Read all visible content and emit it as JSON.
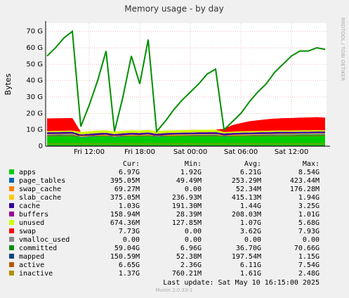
{
  "chart_data": {
    "type": "area",
    "title": "Memory usage - by day",
    "y_label": "Bytes",
    "side_note": "RRDTOOL / TOBI OETIKER",
    "categories": [
      null,
      null,
      null,
      null,
      null,
      "Fri 12:00",
      null,
      null,
      null,
      null,
      null,
      "Fri 18:00",
      null,
      null,
      null,
      null,
      null,
      "Sat 00:00",
      null,
      null,
      null,
      null,
      null,
      "Sat 06:00",
      null,
      null,
      null,
      null,
      null,
      "Sat 12:00",
      null,
      null,
      null,
      null
    ],
    "ylim": [
      0,
      75
    ],
    "yticks": [
      0,
      {
        "value": 10,
        "label": "10 G"
      },
      {
        "value": 20,
        "label": "20 G"
      },
      {
        "value": 30,
        "label": "30 G"
      },
      {
        "value": 40,
        "label": "40 G"
      },
      {
        "value": 50,
        "label": "50 G"
      },
      {
        "value": 60,
        "label": "60 G"
      },
      {
        "value": 70,
        "label": "70 G"
      }
    ],
    "grid": true,
    "stats_columns": [
      "Cur:",
      "Min:",
      "Avg:",
      "Max:"
    ],
    "series": [
      {
        "name": "apps",
        "color": "#00cc00",
        "kind": "area",
        "stats": [
          "6.97G",
          "1.92G",
          "6.21G",
          "8.54G"
        ],
        "values": [
          6.5,
          6.6,
          6.7,
          6.8,
          5.2,
          5.6,
          6,
          6.2,
          5.4,
          5.9,
          6.2,
          6,
          6.4,
          5.6,
          6,
          6.2,
          6.3,
          6.4,
          6.5,
          6.5,
          6.6,
          5.8,
          6.1,
          6.3,
          6.4,
          6.5,
          6.6,
          6.7,
          6.8,
          6.8,
          6.9,
          6.9,
          7,
          6.97
        ]
      },
      {
        "name": "page_tables",
        "color": "#0066b3",
        "kind": "area",
        "stats": [
          "395.05M",
          "49.49M",
          "253.29M",
          "423.44M"
        ],
        "values": [
          0.4,
          0.4,
          0.4,
          0.4,
          0.4,
          0.4,
          0.4,
          0.4,
          0.4,
          0.4,
          0.4,
          0.4,
          0.4,
          0.4,
          0.4,
          0.4,
          0.4,
          0.4,
          0.4,
          0.4,
          0.4,
          0.4,
          0.4,
          0.4,
          0.4,
          0.4,
          0.4,
          0.4,
          0.4,
          0.4,
          0.4,
          0.4,
          0.4,
          0.395
        ]
      },
      {
        "name": "swap_cache",
        "color": "#ff8000",
        "kind": "area",
        "stats": [
          "69.27M",
          "0.00",
          "52.34M",
          "176.28M"
        ],
        "values": [
          0.07,
          0.07,
          0.07,
          0.07,
          0.07,
          0.07,
          0.07,
          0.07,
          0.07,
          0.07,
          0.07,
          0.07,
          0.07,
          0.07,
          0.07,
          0.07,
          0.07,
          0.07,
          0.07,
          0.07,
          0.07,
          0.07,
          0.07,
          0.07,
          0.07,
          0.07,
          0.07,
          0.07,
          0.07,
          0.07,
          0.07,
          0.07,
          0.07,
          0.069
        ]
      },
      {
        "name": "slab_cache",
        "color": "#ffcc00",
        "kind": "area",
        "stats": [
          "375.05M",
          "236.93M",
          "415.13M",
          "1.94G"
        ],
        "values": [
          0.38,
          0.38,
          0.38,
          0.38,
          0.38,
          0.38,
          0.38,
          0.38,
          0.38,
          0.38,
          0.38,
          0.38,
          0.38,
          0.38,
          0.38,
          0.38,
          0.38,
          0.38,
          0.38,
          0.38,
          0.38,
          0.38,
          0.38,
          0.38,
          0.38,
          0.38,
          0.38,
          0.38,
          0.38,
          0.38,
          0.38,
          0.38,
          0.38,
          0.375
        ]
      },
      {
        "name": "cache",
        "color": "#330099",
        "kind": "area",
        "stats": [
          "1.03G",
          "191.30M",
          "1.44G",
          "3.25G"
        ],
        "values": [
          1,
          1,
          1,
          1,
          1,
          1,
          1,
          1,
          1,
          1,
          1,
          1,
          1,
          1,
          1,
          1,
          1,
          1,
          1,
          1,
          1,
          1,
          1,
          1,
          1,
          1,
          1,
          1,
          1,
          1,
          1,
          1,
          1,
          1.03
        ]
      },
      {
        "name": "buffers",
        "color": "#990099",
        "kind": "area",
        "stats": [
          "158.94M",
          "28.39M",
          "208.03M",
          "1.01G"
        ],
        "values": [
          0.16,
          0.16,
          0.16,
          0.16,
          0.16,
          0.16,
          0.16,
          0.16,
          0.16,
          0.16,
          0.16,
          0.16,
          0.16,
          0.16,
          0.16,
          0.16,
          0.16,
          0.16,
          0.16,
          0.16,
          0.16,
          0.16,
          0.16,
          0.16,
          0.16,
          0.16,
          0.16,
          0.16,
          0.16,
          0.16,
          0.16,
          0.16,
          0.16,
          0.159
        ]
      },
      {
        "name": "unused",
        "color": "#ccff00",
        "kind": "area",
        "stats": [
          "674.36M",
          "127.85M",
          "1.07G",
          "5.68G"
        ],
        "values": [
          0.7,
          0.7,
          0.7,
          0.7,
          1.5,
          1.5,
          1.5,
          1.5,
          1.5,
          1.5,
          1.5,
          1.5,
          1.5,
          1.5,
          1.5,
          1.5,
          1.5,
          1.5,
          1.5,
          1.5,
          1.5,
          0.8,
          0.8,
          0.8,
          0.8,
          0.8,
          0.8,
          0.8,
          0.8,
          0.8,
          0.8,
          0.8,
          0.8,
          0.67
        ]
      },
      {
        "name": "swap",
        "color": "#ff0000",
        "kind": "area",
        "stats": [
          "7.73G",
          "0.00",
          "3.62G",
          "7.93G"
        ],
        "values": [
          7.7,
          7.7,
          7.7,
          7.7,
          0,
          0,
          0,
          0,
          0,
          0,
          0,
          0,
          0,
          0,
          0,
          0,
          0,
          0,
          0,
          0,
          0,
          2,
          4,
          5,
          6,
          6.5,
          7,
          7.3,
          7.5,
          7.6,
          7.7,
          7.8,
          7.9,
          7.73
        ]
      },
      {
        "name": "vmalloc_used",
        "color": "#888888",
        "kind": "line",
        "stats": [
          "0.00",
          "0.00",
          "0.00",
          "0.00"
        ],
        "values": [
          0,
          0,
          0,
          0,
          0,
          0,
          0,
          0,
          0,
          0,
          0,
          0,
          0,
          0,
          0,
          0,
          0,
          0,
          0,
          0,
          0,
          0,
          0,
          0,
          0,
          0,
          0,
          0,
          0,
          0,
          0,
          0,
          0,
          0
        ]
      },
      {
        "name": "committed",
        "color": "#008f00",
        "kind": "line",
        "stats": [
          "59.04G",
          "6.96G",
          "36.70G",
          "70.66G"
        ],
        "values": [
          55,
          60,
          66,
          70,
          12,
          25,
          40,
          58,
          9,
          30,
          55,
          38,
          65,
          9,
          15,
          22,
          28,
          33,
          38,
          44,
          47,
          10,
          15,
          20,
          27,
          33,
          38,
          45,
          50,
          55,
          58,
          58,
          60,
          59.04
        ]
      },
      {
        "name": "mapped",
        "color": "#00487d",
        "kind": "line",
        "stats": [
          "150.59M",
          "52.38M",
          "197.54M",
          "1.15G"
        ],
        "values": [
          0.15,
          0.15,
          0.15,
          0.15,
          0.15,
          0.15,
          0.15,
          0.15,
          0.15,
          0.15,
          0.15,
          0.15,
          0.15,
          0.15,
          0.15,
          0.15,
          0.15,
          0.15,
          0.15,
          0.15,
          0.15,
          0.15,
          0.15,
          0.15,
          0.15,
          0.15,
          0.15,
          0.15,
          0.15,
          0.15,
          0.15,
          0.15,
          0.15,
          0.15
        ]
      },
      {
        "name": "active",
        "color": "#b35a00",
        "kind": "line",
        "stats": [
          "6.65G",
          "2.36G",
          "6.11G",
          "7.54G"
        ],
        "values": [
          6.4,
          6.4,
          6.4,
          6.4,
          6.4,
          6.4,
          6.4,
          6.4,
          6.4,
          6.4,
          6.4,
          6.4,
          6.4,
          6.4,
          6.4,
          6.4,
          6.4,
          6.4,
          6.4,
          6.4,
          6.4,
          6.4,
          6.4,
          6.4,
          6.4,
          6.4,
          6.4,
          6.4,
          6.4,
          6.4,
          6.4,
          6.4,
          6.4,
          6.65
        ]
      },
      {
        "name": "inactive",
        "color": "#b38f00",
        "kind": "line",
        "stats": [
          "1.37G",
          "760.21M",
          "1.61G",
          "2.48G"
        ],
        "values": [
          1.4,
          1.4,
          1.4,
          1.4,
          1.4,
          1.4,
          1.4,
          1.4,
          1.4,
          1.4,
          1.4,
          1.4,
          1.4,
          1.4,
          1.4,
          1.4,
          1.4,
          1.4,
          1.4,
          1.4,
          1.4,
          1.4,
          1.4,
          1.4,
          1.4,
          1.4,
          1.4,
          1.4,
          1.4,
          1.4,
          1.4,
          1.4,
          1.4,
          1.37
        ]
      }
    ],
    "last_update": "Last update:  Sat May 10 16:15:00 2025",
    "footer": "Munin 2.0.33-1"
  }
}
